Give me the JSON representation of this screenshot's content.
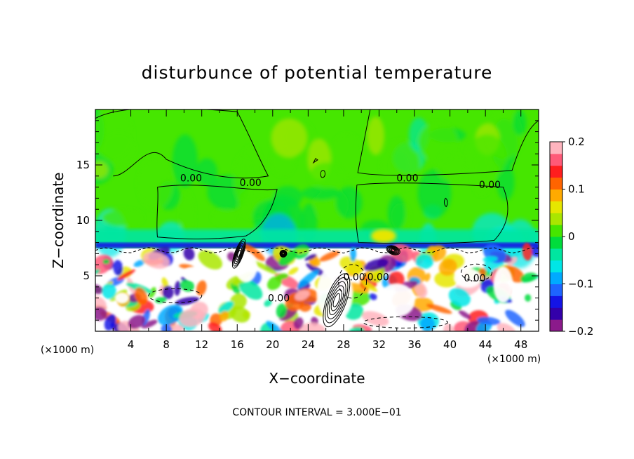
{
  "chart_data": {
    "type": "heatmap",
    "title": "disturbunce of potential temperature",
    "xlabel": "X−coordinate",
    "ylabel": "Z−coordinate",
    "x_unit": "(×1000 m)",
    "y_unit": "(×1000 m)",
    "xlim": [
      0,
      50
    ],
    "ylim": [
      0,
      20
    ],
    "x_ticks": [
      4,
      8,
      12,
      16,
      20,
      24,
      28,
      32,
      36,
      40,
      44,
      48
    ],
    "y_ticks": [
      5,
      10,
      15
    ],
    "colorbar": {
      "min": -0.2,
      "max": 0.2,
      "ticks": [
        0.2,
        0.1,
        0,
        -0.1,
        -0.2
      ],
      "tick_labels": [
        "0.2",
        "0.1",
        "0",
        "−0.1",
        "−0.2"
      ],
      "colors": [
        "#8b1a8b",
        "#3300aa",
        "#1414e6",
        "#1e64ff",
        "#00aaff",
        "#00e6e6",
        "#00e6a0",
        "#00dc3c",
        "#46e600",
        "#aae600",
        "#e6e600",
        "#ffaa00",
        "#ff6400",
        "#ff1e1e",
        "#ff5a78",
        "#ffb4be"
      ]
    },
    "contour_interval_text": "CONTOUR INTERVAL = 3.000E−01",
    "contour_labels": [
      "0.00",
      "0.00",
      "0.00",
      "0.00",
      "0.00",
      "0.00",
      "0.00",
      "0.00"
    ],
    "regions": {
      "upper_value_approx": 0.0,
      "lower_boundary_z": 7.5,
      "lower_range": [
        -0.2,
        0.2
      ]
    }
  }
}
